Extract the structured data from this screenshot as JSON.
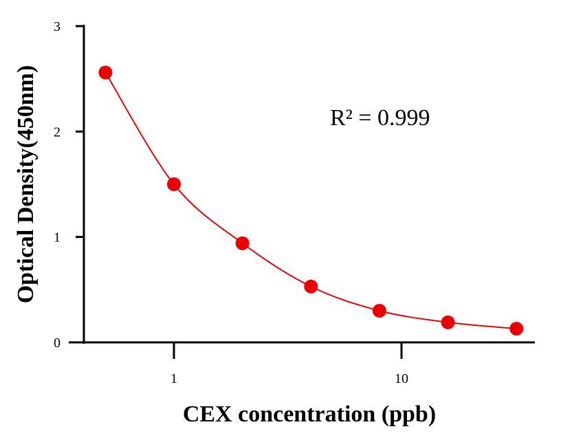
{
  "chart_data": {
    "type": "scatter",
    "title": "",
    "xlabel": "CEX concentration (ppb)",
    "ylabel": "Optical Density(450nm)",
    "xscale": "log",
    "xlim": [
      0.4,
      38
    ],
    "ylim": [
      0,
      3
    ],
    "xticks": [
      1,
      10
    ],
    "xtick_labels": [
      "1",
      "10"
    ],
    "yticks": [
      0,
      1,
      2,
      3
    ],
    "ytick_labels": [
      "0",
      "1",
      "2",
      "3"
    ],
    "grid": false,
    "color": "#ee0000",
    "fit_curve": true,
    "annotation": "R² = 0.999",
    "x": [
      0.5,
      1,
      2,
      4,
      8,
      16,
      32
    ],
    "y": [
      2.56,
      1.5,
      0.94,
      0.53,
      0.3,
      0.19,
      0.13
    ]
  }
}
